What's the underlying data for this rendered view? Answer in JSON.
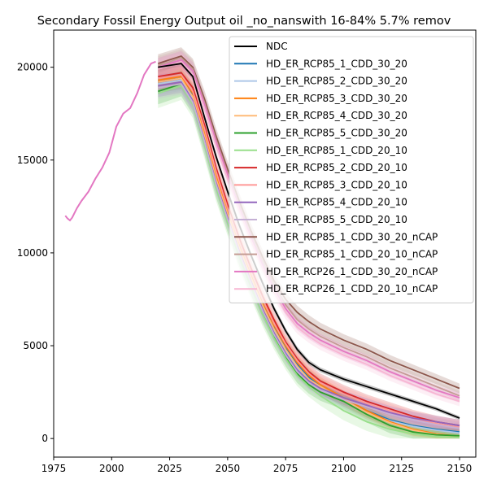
{
  "chart_data": {
    "type": "line",
    "title": "Secondary Fossil Energy Output oil _no_nanswith 16-84% 5.7% remov",
    "xlabel": "",
    "ylabel": "",
    "xlim": [
      1975,
      2157
    ],
    "ylim": [
      -1000,
      22000
    ],
    "x_ticks": [
      1975,
      2000,
      2025,
      2050,
      2075,
      2100,
      2125,
      2150
    ],
    "y_ticks": [
      0,
      5000,
      10000,
      15000,
      20000
    ],
    "grid": false,
    "legend_position": "top-right",
    "historical": {
      "x": [
        1980,
        1981,
        1982,
        1983,
        1985,
        1987,
        1990,
        1993,
        1996,
        1999,
        2002,
        2005,
        2008,
        2011,
        2014,
        2017,
        2019
      ],
      "y": [
        12000,
        11850,
        11750,
        11900,
        12400,
        12800,
        13300,
        14000,
        14600,
        15400,
        16800,
        17500,
        17800,
        18600,
        19600,
        20200,
        20300
      ]
    },
    "x": [
      2020,
      2025,
      2030,
      2035,
      2040,
      2045,
      2050,
      2055,
      2060,
      2065,
      2070,
      2075,
      2080,
      2085,
      2090,
      2100,
      2110,
      2120,
      2130,
      2140,
      2150
    ],
    "series": [
      {
        "name": "NDC",
        "color": "#000000",
        "values": [
          20000,
          20100,
          20200,
          19500,
          17300,
          15200,
          13300,
          11500,
          9900,
          8400,
          7000,
          5800,
          4800,
          4100,
          3700,
          3200,
          2800,
          2400,
          2000,
          1600,
          1100
        ],
        "band": 200
      },
      {
        "name": "HD_ER_RCP85_1_CDD_30_20",
        "color": "#1f77b4",
        "values": [
          19200,
          19300,
          19400,
          18500,
          16400,
          14100,
          12200,
          10400,
          8800,
          7300,
          6000,
          4900,
          4000,
          3300,
          2800,
          2100,
          1500,
          1000,
          700,
          500,
          350
        ],
        "band": 600
      },
      {
        "name": "HD_ER_RCP85_2_CDD_30_20",
        "color": "#aec7e8",
        "values": [
          19100,
          19200,
          19300,
          18300,
          16200,
          13900,
          12000,
          10200,
          8600,
          7100,
          5800,
          4700,
          3800,
          3100,
          2700,
          2000,
          1400,
          950,
          650,
          450,
          300
        ],
        "band": 600
      },
      {
        "name": "HD_ER_RCP85_3_CDD_30_20",
        "color": "#ff7f0e",
        "values": [
          19300,
          19400,
          19500,
          18600,
          16500,
          14200,
          12300,
          10500,
          8900,
          7400,
          6100,
          5000,
          4100,
          3400,
          2900,
          2200,
          1500,
          900,
          500,
          250,
          120
        ],
        "band": 600
      },
      {
        "name": "HD_ER_RCP85_4_CDD_30_20",
        "color": "#ffbb78",
        "values": [
          19200,
          19300,
          19400,
          18400,
          16300,
          14000,
          12100,
          10300,
          8700,
          7200,
          5900,
          4800,
          3900,
          3200,
          2800,
          2100,
          1400,
          850,
          450,
          220,
          100
        ],
        "band": 600
      },
      {
        "name": "HD_ER_RCP85_5_CDD_30_20",
        "color": "#2ca02c",
        "values": [
          18700,
          18900,
          19100,
          18100,
          15900,
          13600,
          11700,
          9900,
          8300,
          6800,
          5500,
          4400,
          3500,
          2900,
          2500,
          2000,
          1300,
          700,
          350,
          200,
          150
        ],
        "band": 700
      },
      {
        "name": "HD_ER_RCP85_1_CDD_20_10",
        "color": "#98df8a",
        "values": [
          18600,
          18800,
          19000,
          18000,
          15800,
          13500,
          11600,
          9800,
          8200,
          6700,
          5400,
          4300,
          3400,
          2800,
          2300,
          1500,
          900,
          500,
          250,
          100,
          60
        ],
        "band": 800
      },
      {
        "name": "HD_ER_RCP85_2_CDD_20_10",
        "color": "#d62728",
        "values": [
          19500,
          19600,
          19700,
          18900,
          16900,
          14600,
          12600,
          10800,
          9200,
          7700,
          6400,
          5200,
          4300,
          3600,
          3100,
          2500,
          2000,
          1600,
          1200,
          900,
          700
        ],
        "band": 600
      },
      {
        "name": "HD_ER_RCP85_3_CDD_20_10",
        "color": "#ff9896",
        "values": [
          19400,
          19500,
          19600,
          18700,
          16700,
          14400,
          12400,
          10600,
          9000,
          7500,
          6200,
          5100,
          4200,
          3500,
          3000,
          2400,
          1900,
          1500,
          1100,
          800,
          600
        ],
        "band": 600
      },
      {
        "name": "HD_ER_RCP85_4_CDD_20_10",
        "color": "#9467bd",
        "values": [
          19000,
          19100,
          19200,
          18200,
          16100,
          13800,
          11900,
          10100,
          8500,
          7000,
          5700,
          4600,
          3700,
          3100,
          2700,
          2200,
          1800,
          1400,
          1100,
          900,
          700
        ],
        "band": 600
      },
      {
        "name": "HD_ER_RCP85_5_CDD_20_10",
        "color": "#c5b0d5",
        "values": [
          18900,
          19000,
          19100,
          18100,
          16000,
          13700,
          11800,
          10000,
          8400,
          6900,
          5600,
          4500,
          3600,
          3000,
          2600,
          2100,
          1700,
          1300,
          1000,
          750,
          550
        ],
        "band": 600
      },
      {
        "name": "HD_ER_RCP85_1_CDD_30_20_nCAP",
        "color": "#8c564b",
        "values": [
          20200,
          20400,
          20600,
          20000,
          18300,
          16300,
          14500,
          12800,
          11200,
          9800,
          8500,
          7500,
          6800,
          6300,
          5900,
          5300,
          4800,
          4200,
          3700,
          3200,
          2700
        ],
        "band": 500
      },
      {
        "name": "HD_ER_RCP85_1_CDD_20_10_nCAP",
        "color": "#c49c94",
        "values": [
          20100,
          20300,
          20500,
          19900,
          18100,
          16100,
          14300,
          12600,
          11000,
          9600,
          8300,
          7200,
          6400,
          5900,
          5500,
          4900,
          4400,
          3800,
          3300,
          2800,
          2300
        ],
        "band": 500
      },
      {
        "name": "HD_ER_RCP26_1_CDD_30_20_nCAP",
        "color": "#e377c2",
        "values": [
          20000,
          20200,
          20400,
          19800,
          18000,
          16000,
          14200,
          12500,
          10900,
          9400,
          8100,
          7000,
          6200,
          5700,
          5300,
          4700,
          4200,
          3600,
          3100,
          2600,
          2200
        ],
        "band": 500
      },
      {
        "name": "HD_ER_RCP26_1_CDD_20_10_nCAP",
        "color": "#f7b6d2",
        "values": [
          19900,
          20100,
          20300,
          19600,
          17800,
          15800,
          14000,
          12300,
          10700,
          9200,
          7900,
          6800,
          6000,
          5500,
          5100,
          4500,
          4000,
          3400,
          2900,
          2400,
          2000
        ],
        "band": 500
      }
    ]
  }
}
